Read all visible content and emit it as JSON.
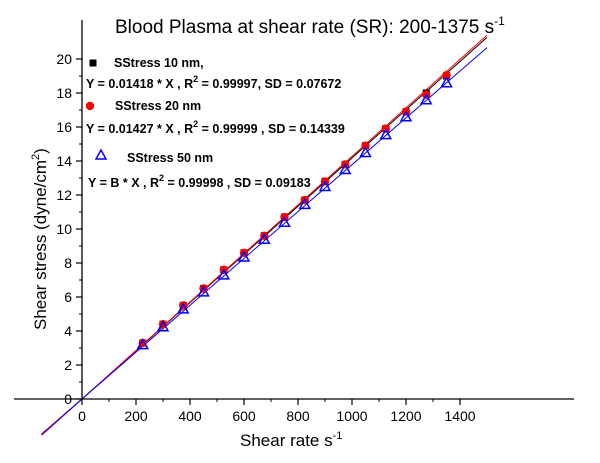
{
  "chart_data": {
    "type": "scatter",
    "title": {
      "main": "Blood Plasma at shear rate (SR): 200-1375 s",
      "sup": "-1"
    },
    "xlabel": {
      "main": "Shear rate s",
      "sup": "-1"
    },
    "ylabel": {
      "main": "Shear stress (dyne/cm",
      "sup": "2",
      "end": ")"
    },
    "xlim": [
      -150,
      1500
    ],
    "ylim": [
      -1,
      21
    ],
    "xticks": [
      "0",
      "200",
      "400",
      "600",
      "800",
      "1000",
      "1200",
      "1400"
    ],
    "yticks": [
      "0",
      "2",
      "4",
      "6",
      "8",
      "10",
      "12",
      "14",
      "16",
      "18",
      "20"
    ],
    "series": [
      {
        "name": "SStress 10 nm,",
        "fit": {
          "prefix": "Y = 0.01418 * X , R",
          "sup": "2",
          "suffix": " = 0.99997, SD = 0.07672"
        },
        "slope": 0.01418,
        "marker": "square",
        "color": "#000000",
        "line_color": "#000000",
        "x": [
          225,
          300,
          375,
          450,
          525,
          600,
          675,
          750,
          825,
          900,
          975,
          1050,
          1125,
          1200,
          1275,
          1350
        ],
        "y": [
          3.3,
          4.4,
          5.5,
          6.5,
          7.6,
          8.6,
          9.6,
          10.7,
          11.7,
          12.8,
          13.8,
          14.9,
          15.9,
          16.9,
          18.0,
          19.0
        ]
      },
      {
        "name": "SStress 20 nm",
        "fit": {
          "prefix": "Y = 0.01427 * X , R",
          "sup": "2",
          "suffix": " = 0.99999 , SD = 0.14339"
        },
        "slope": 0.01427,
        "marker": "circle",
        "color": "#ff0000",
        "line_color": "#ff0000",
        "x": [
          225,
          300,
          375,
          450,
          525,
          600,
          675,
          750,
          825,
          900,
          975,
          1050,
          1125,
          1200,
          1275,
          1350
        ],
        "y": [
          3.3,
          4.4,
          5.5,
          6.5,
          7.6,
          8.6,
          9.6,
          10.7,
          11.7,
          12.8,
          13.8,
          14.9,
          15.9,
          16.9,
          17.9,
          19.05
        ]
      },
      {
        "name": "SStress 50 nm",
        "fit": {
          "prefix": "Y = B * X , R",
          "sup": "2",
          "suffix": " = 0.99998 , SD = 0.09183"
        },
        "slope": 0.01378,
        "marker": "triangle",
        "color": "#0000ff",
        "line_color": "#0000ff",
        "x": [
          225,
          300,
          375,
          450,
          525,
          600,
          675,
          750,
          825,
          900,
          975,
          1050,
          1125,
          1200,
          1275,
          1350
        ],
        "y": [
          3.2,
          4.25,
          5.3,
          6.3,
          7.3,
          8.35,
          9.4,
          10.4,
          11.45,
          12.5,
          13.5,
          14.5,
          15.55,
          16.6,
          17.6,
          18.6
        ]
      }
    ]
  }
}
